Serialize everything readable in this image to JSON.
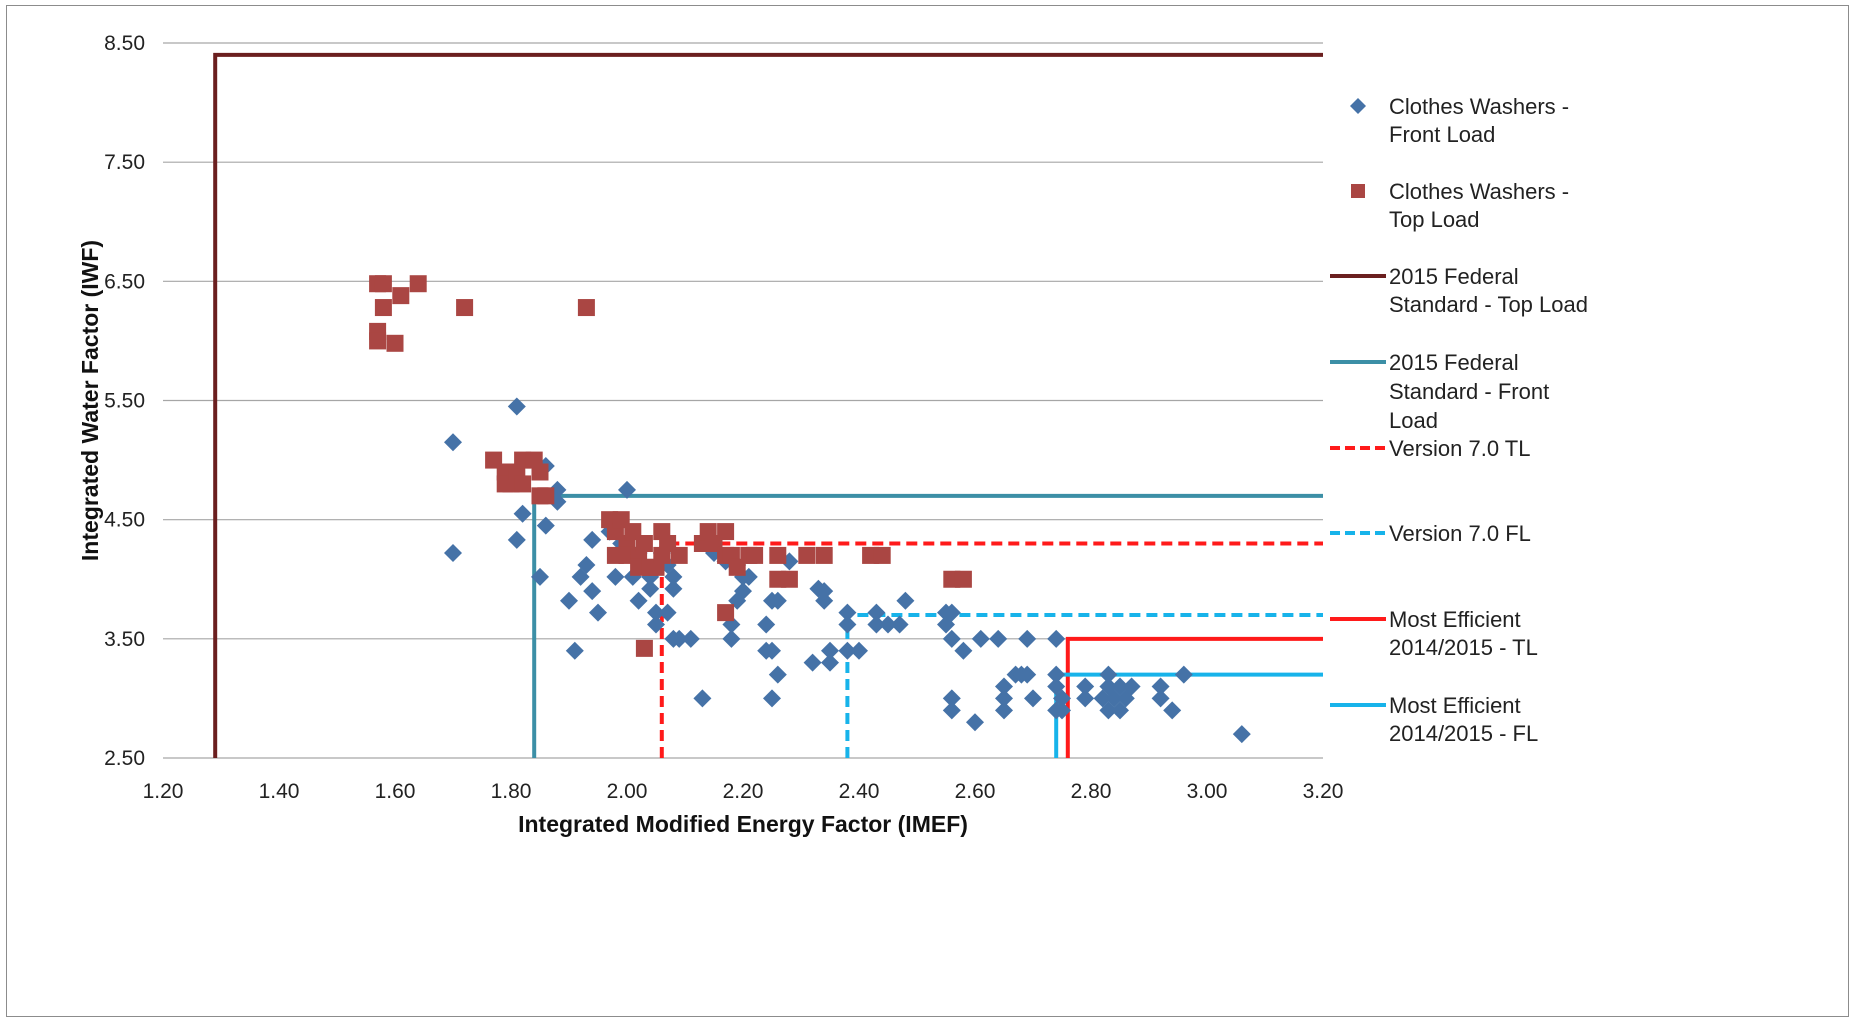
{
  "chart_data": {
    "type": "scatter",
    "title": "",
    "xlabel": "Integrated Modified Energy Factor (IMEF)",
    "ylabel": "Integrated Water Factor (IWF)",
    "xlim": [
      1.2,
      3.2
    ],
    "ylim": [
      2.5,
      8.5
    ],
    "x_ticks": [
      "1.20",
      "1.40",
      "1.60",
      "1.80",
      "2.00",
      "2.20",
      "2.40",
      "2.60",
      "2.80",
      "3.00",
      "3.20"
    ],
    "y_ticks": [
      "2.50",
      "3.50",
      "4.50",
      "5.50",
      "6.50",
      "7.50",
      "8.50"
    ],
    "grid": "horizontal",
    "legend_position": "right",
    "scatter_series": [
      {
        "name": "Clothes Washers - Front Load",
        "marker": "diamond",
        "color": "#4572a7",
        "points": [
          [
            1.7,
            5.15
          ],
          [
            1.7,
            4.22
          ],
          [
            1.81,
            5.45
          ],
          [
            1.81,
            4.33
          ],
          [
            1.82,
            4.55
          ],
          [
            1.85,
            4.02
          ],
          [
            1.86,
            4.45
          ],
          [
            1.86,
            4.95
          ],
          [
            1.88,
            4.75
          ],
          [
            1.88,
            4.65
          ],
          [
            1.9,
            3.82
          ],
          [
            1.91,
            3.4
          ],
          [
            1.92,
            4.02
          ],
          [
            1.93,
            4.12
          ],
          [
            1.94,
            3.9
          ],
          [
            1.94,
            4.33
          ],
          [
            1.95,
            3.72
          ],
          [
            1.97,
            4.4
          ],
          [
            1.98,
            4.02
          ],
          [
            1.99,
            4.3
          ],
          [
            2.0,
            4.75
          ],
          [
            2.01,
            4.02
          ],
          [
            2.02,
            4.22
          ],
          [
            2.02,
            3.82
          ],
          [
            2.03,
            4.12
          ],
          [
            2.04,
            3.92
          ],
          [
            2.04,
            4.02
          ],
          [
            2.05,
            3.62
          ],
          [
            2.05,
            3.72
          ],
          [
            2.06,
            4.22
          ],
          [
            2.07,
            3.72
          ],
          [
            2.07,
            4.12
          ],
          [
            2.08,
            4.02
          ],
          [
            2.08,
            3.92
          ],
          [
            2.08,
            3.5
          ],
          [
            2.09,
            3.5
          ],
          [
            2.11,
            3.5
          ],
          [
            2.13,
            3.0
          ],
          [
            2.15,
            4.22
          ],
          [
            2.17,
            4.15
          ],
          [
            2.18,
            3.62
          ],
          [
            2.18,
            3.5
          ],
          [
            2.19,
            3.82
          ],
          [
            2.19,
            4.12
          ],
          [
            2.2,
            3.9
          ],
          [
            2.2,
            4.02
          ],
          [
            2.21,
            4.02
          ],
          [
            2.24,
            3.62
          ],
          [
            2.24,
            3.4
          ],
          [
            2.25,
            3.4
          ],
          [
            2.25,
            3.82
          ],
          [
            2.25,
            3.0
          ],
          [
            2.26,
            3.2
          ],
          [
            2.26,
            3.82
          ],
          [
            2.28,
            4.15
          ],
          [
            2.32,
            3.3
          ],
          [
            2.33,
            3.92
          ],
          [
            2.34,
            3.82
          ],
          [
            2.34,
            3.9
          ],
          [
            2.35,
            3.3
          ],
          [
            2.35,
            3.4
          ],
          [
            2.38,
            3.72
          ],
          [
            2.38,
            3.62
          ],
          [
            2.38,
            3.4
          ],
          [
            2.4,
            3.4
          ],
          [
            2.43,
            3.62
          ],
          [
            2.43,
            3.72
          ],
          [
            2.45,
            3.62
          ],
          [
            2.47,
            3.62
          ],
          [
            2.48,
            3.82
          ],
          [
            2.55,
            3.72
          ],
          [
            2.55,
            3.62
          ],
          [
            2.56,
            3.5
          ],
          [
            2.56,
            3.72
          ],
          [
            2.56,
            3.0
          ],
          [
            2.56,
            2.9
          ],
          [
            2.58,
            3.4
          ],
          [
            2.6,
            2.8
          ],
          [
            2.61,
            3.5
          ],
          [
            2.64,
            3.5
          ],
          [
            2.65,
            3.1
          ],
          [
            2.65,
            3.0
          ],
          [
            2.65,
            2.9
          ],
          [
            2.67,
            3.2
          ],
          [
            2.68,
            3.2
          ],
          [
            2.69,
            3.2
          ],
          [
            2.69,
            3.5
          ],
          [
            2.7,
            3.0
          ],
          [
            2.74,
            3.5
          ],
          [
            2.74,
            3.2
          ],
          [
            2.74,
            3.1
          ],
          [
            2.74,
            2.9
          ],
          [
            2.75,
            3.0
          ],
          [
            2.75,
            2.9
          ],
          [
            2.79,
            3.0
          ],
          [
            2.79,
            3.1
          ],
          [
            2.82,
            3.0
          ],
          [
            2.83,
            3.1
          ],
          [
            2.83,
            3.2
          ],
          [
            2.83,
            2.9
          ],
          [
            2.84,
            3.0
          ],
          [
            2.85,
            2.9
          ],
          [
            2.85,
            3.1
          ],
          [
            2.86,
            3.0
          ],
          [
            2.87,
            3.1
          ],
          [
            2.92,
            3.0
          ],
          [
            2.92,
            3.1
          ],
          [
            2.94,
            2.9
          ],
          [
            2.96,
            3.2
          ],
          [
            3.06,
            2.7
          ]
        ]
      },
      {
        "name": "Clothes Washers - Top Load",
        "marker": "square",
        "color": "#aa4643",
        "points": [
          [
            1.57,
            6.48
          ],
          [
            1.57,
            6.08
          ],
          [
            1.57,
            6.0
          ],
          [
            1.58,
            6.28
          ],
          [
            1.58,
            6.48
          ],
          [
            1.6,
            5.98
          ],
          [
            1.61,
            6.38
          ],
          [
            1.64,
            6.48
          ],
          [
            1.72,
            6.28
          ],
          [
            1.93,
            6.28
          ],
          [
            1.77,
            5.0
          ],
          [
            1.79,
            4.9
          ],
          [
            1.79,
            4.8
          ],
          [
            1.8,
            4.8
          ],
          [
            1.81,
            4.9
          ],
          [
            1.82,
            4.8
          ],
          [
            1.82,
            5.0
          ],
          [
            1.84,
            5.0
          ],
          [
            1.85,
            4.9
          ],
          [
            1.85,
            4.7
          ],
          [
            1.86,
            4.7
          ],
          [
            1.97,
            4.5
          ],
          [
            1.98,
            4.4
          ],
          [
            1.98,
            4.2
          ],
          [
            1.99,
            4.5
          ],
          [
            2.0,
            4.3
          ],
          [
            2.0,
            4.2
          ],
          [
            2.01,
            4.4
          ],
          [
            2.02,
            4.2
          ],
          [
            2.02,
            4.1
          ],
          [
            2.03,
            3.42
          ],
          [
            2.03,
            4.3
          ],
          [
            2.04,
            4.1
          ],
          [
            2.05,
            4.1
          ],
          [
            2.06,
            4.4
          ],
          [
            2.06,
            4.2
          ],
          [
            2.07,
            4.3
          ],
          [
            2.09,
            4.2
          ],
          [
            2.13,
            4.3
          ],
          [
            2.14,
            4.3
          ],
          [
            2.14,
            4.4
          ],
          [
            2.15,
            4.3
          ],
          [
            2.17,
            4.4
          ],
          [
            2.17,
            4.2
          ],
          [
            2.17,
            3.72
          ],
          [
            2.18,
            4.2
          ],
          [
            2.19,
            4.1
          ],
          [
            2.21,
            4.2
          ],
          [
            2.22,
            4.2
          ],
          [
            2.26,
            4.2
          ],
          [
            2.26,
            4.0
          ],
          [
            2.28,
            4.0
          ],
          [
            2.31,
            4.2
          ],
          [
            2.34,
            4.2
          ],
          [
            2.42,
            4.2
          ],
          [
            2.44,
            4.2
          ],
          [
            2.56,
            4.0
          ],
          [
            2.58,
            4.0
          ]
        ]
      }
    ],
    "line_series": [
      {
        "name": "2015 Federal Standard - Top Load",
        "color": "#6b1f1f",
        "style": "solid",
        "points": [
          [
            1.29,
            2.5
          ],
          [
            1.29,
            8.4
          ],
          [
            3.2,
            8.4
          ]
        ]
      },
      {
        "name": "2015 Federal Standard - Front Load",
        "color": "#3c8fa6",
        "style": "solid",
        "points": [
          [
            1.84,
            2.5
          ],
          [
            1.84,
            4.7
          ],
          [
            3.2,
            4.7
          ]
        ]
      },
      {
        "name": "Version 7.0 TL",
        "color": "#ff1a1a",
        "style": "dashed",
        "points": [
          [
            2.06,
            2.5
          ],
          [
            2.06,
            4.3
          ],
          [
            3.2,
            4.3
          ]
        ]
      },
      {
        "name": "Version 7.0 FL",
        "color": "#17b3ea",
        "style": "dashed",
        "points": [
          [
            2.38,
            2.5
          ],
          [
            2.38,
            3.7
          ],
          [
            3.2,
            3.7
          ]
        ]
      },
      {
        "name": "Most Efficient 2014/2015 - TL",
        "color": "#ff1a1a",
        "style": "solid",
        "points": [
          [
            2.76,
            2.5
          ],
          [
            2.76,
            3.5
          ],
          [
            3.2,
            3.5
          ]
        ]
      },
      {
        "name": "Most Efficient 2014/2015 - FL",
        "color": "#17b3ea",
        "style": "solid",
        "points": [
          [
            2.74,
            2.5
          ],
          [
            2.74,
            3.2
          ],
          [
            3.2,
            3.2
          ]
        ]
      }
    ],
    "legend": [
      {
        "symbol": "diamond",
        "color": "#4572a7",
        "lines": [
          "Clothes Washers -",
          "Front Load"
        ]
      },
      {
        "symbol": "square",
        "color": "#aa4643",
        "lines": [
          "Clothes Washers -",
          "Top Load"
        ]
      },
      {
        "symbol": "line-solid",
        "color": "#6b1f1f",
        "lines": [
          "2015 Federal",
          "Standard - Top Load"
        ]
      },
      {
        "symbol": "line-solid",
        "color": "#3c8fa6",
        "lines": [
          "2015 Federal",
          "Standard - Front",
          "Load"
        ]
      },
      {
        "symbol": "line-dashed",
        "color": "#ff1a1a",
        "lines": [
          "Version 7.0 TL"
        ]
      },
      {
        "symbol": "line-dashed",
        "color": "#17b3ea",
        "lines": [
          "Version 7.0 FL"
        ]
      },
      {
        "symbol": "line-solid",
        "color": "#ff1a1a",
        "lines": [
          "Most Efficient",
          "2014/2015 - TL"
        ]
      },
      {
        "symbol": "line-solid",
        "color": "#17b3ea",
        "lines": [
          "Most Efficient",
          "2014/2015 - FL"
        ]
      }
    ],
    "gridline_color": "#a6a6a6"
  }
}
